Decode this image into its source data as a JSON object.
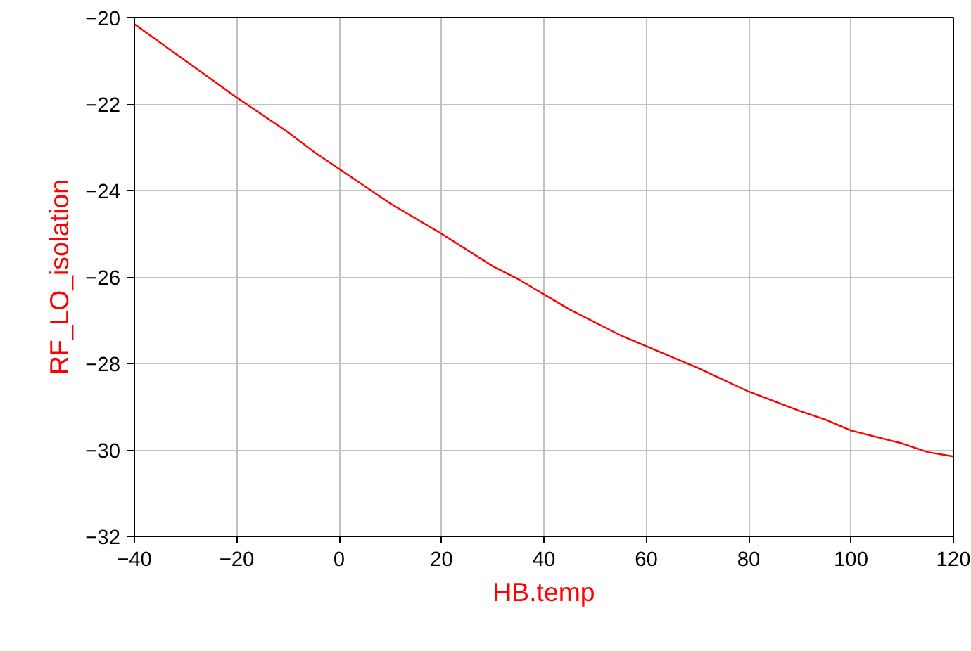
{
  "chart_data": {
    "type": "line",
    "xlabel": "HB.temp",
    "ylabel": "RF_LO_isolation",
    "x": [
      -40,
      -30,
      -20,
      -10,
      -5,
      0,
      10,
      20,
      30,
      35,
      40,
      45,
      55,
      60,
      70,
      80,
      90,
      95,
      100,
      110,
      115,
      120
    ],
    "series": [
      {
        "color": "#ff0000",
        "values": [
          -20.15,
          -21.0,
          -21.85,
          -22.65,
          -23.1,
          -23.5,
          -24.3,
          -25.0,
          -25.75,
          -26.05,
          -26.4,
          -26.75,
          -27.35,
          -27.6,
          -28.1,
          -28.65,
          -29.1,
          -29.3,
          -29.55,
          -29.85,
          -30.05,
          -30.15
        ]
      }
    ],
    "xlim": [
      -40,
      120
    ],
    "xticks": [
      -40,
      -20,
      0,
      20,
      40,
      60,
      80,
      100,
      120
    ],
    "ylim": [
      -32,
      -20
    ],
    "yticks": [
      -32,
      -30,
      -28,
      -26,
      -24,
      -22,
      -20
    ],
    "grid": true,
    "marker": "none",
    "line_style": "solid"
  }
}
